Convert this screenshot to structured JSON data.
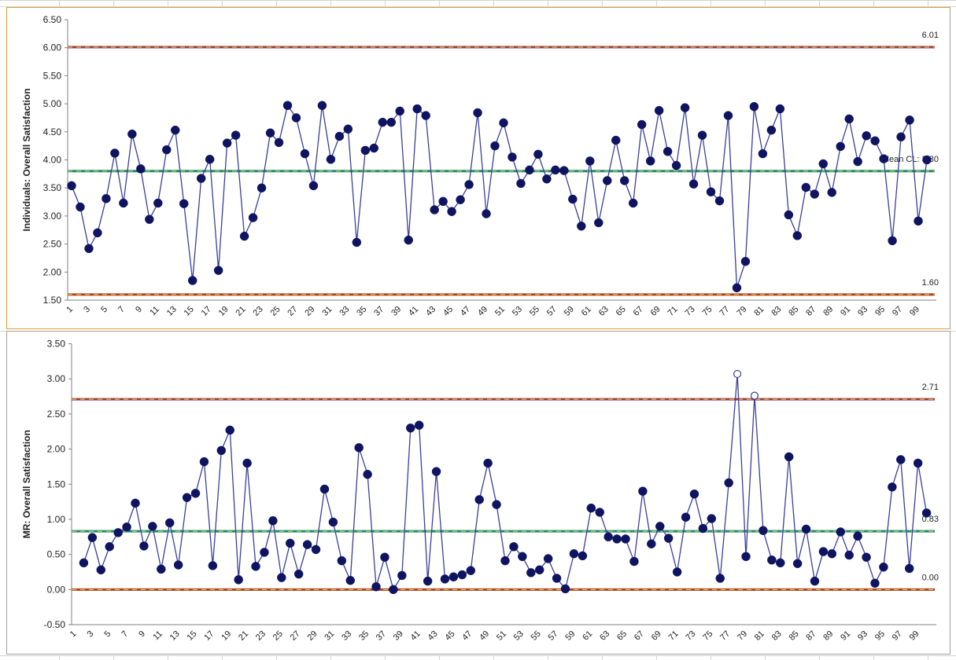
{
  "chart_data": [
    {
      "type": "line",
      "title": "",
      "xlabel": "",
      "ylabel": "Individuals: Overall Satisfaction",
      "ylim": [
        1.5,
        6.5
      ],
      "yticks": [
        "1.50",
        "2.00",
        "2.50",
        "3.00",
        "3.50",
        "4.00",
        "4.50",
        "5.00",
        "5.50",
        "6.00",
        "6.50"
      ],
      "xticks": [
        "1",
        "3",
        "5",
        "7",
        "9",
        "11",
        "13",
        "15",
        "17",
        "19",
        "21",
        "23",
        "25",
        "27",
        "29",
        "31",
        "33",
        "35",
        "37",
        "39",
        "41",
        "43",
        "45",
        "47",
        "49",
        "51",
        "53",
        "55",
        "57",
        "59",
        "61",
        "63",
        "65",
        "67",
        "69",
        "71",
        "73",
        "75",
        "77",
        "79",
        "81",
        "83",
        "85",
        "87",
        "89",
        "91",
        "93",
        "95",
        "97",
        "99"
      ],
      "grid": false,
      "x": [
        1,
        2,
        3,
        4,
        5,
        6,
        7,
        8,
        9,
        10,
        11,
        12,
        13,
        14,
        15,
        16,
        17,
        18,
        19,
        20,
        21,
        22,
        23,
        24,
        25,
        26,
        27,
        28,
        29,
        30,
        31,
        32,
        33,
        34,
        35,
        36,
        37,
        38,
        39,
        40,
        41,
        42,
        43,
        44,
        45,
        46,
        47,
        48,
        49,
        50,
        51,
        52,
        53,
        54,
        55,
        56,
        57,
        58,
        59,
        60,
        61,
        62,
        63,
        64,
        65,
        66,
        67,
        68,
        69,
        70,
        71,
        72,
        73,
        74,
        75,
        76,
        77,
        78,
        79,
        80,
        81,
        82,
        83,
        84,
        85,
        86,
        87,
        88,
        89,
        90,
        91,
        92,
        93,
        94,
        95,
        96,
        97,
        98,
        99,
        100
      ],
      "series": [
        {
          "name": "Overall Satisfaction",
          "color": "#0f1461",
          "values": [
            3.54,
            3.16,
            2.42,
            2.7,
            3.31,
            4.12,
            3.23,
            4.46,
            3.84,
            2.94,
            3.23,
            4.18,
            4.53,
            3.22,
            1.85,
            3.67,
            4.01,
            2.03,
            4.3,
            4.44,
            2.64,
            2.97,
            3.5,
            4.48,
            4.31,
            4.97,
            4.75,
            4.11,
            3.54,
            4.97,
            4.01,
            4.42,
            4.55,
            2.53,
            4.17,
            4.21,
            4.67,
            4.67,
            4.87,
            2.57,
            4.91,
            4.79,
            3.11,
            3.26,
            3.08,
            3.29,
            3.56,
            4.84,
            3.04,
            4.25,
            4.66,
            4.05,
            3.58,
            3.82,
            4.1,
            3.66,
            3.82,
            3.81,
            3.3,
            2.82,
            3.98,
            2.88,
            3.63,
            4.35,
            3.63,
            3.23,
            4.63,
            3.98,
            4.88,
            4.15,
            3.9,
            4.93,
            3.57,
            4.44,
            3.43,
            3.27,
            4.79,
            1.72,
            2.19,
            4.95,
            4.11,
            4.53,
            4.91,
            3.02,
            2.65,
            3.51,
            3.39,
            3.93,
            3.42,
            4.24,
            4.73,
            3.97,
            4.43,
            4.34,
            4.02,
            2.56,
            4.41,
            4.71,
            2.91,
            4.0
          ]
        }
      ],
      "control_lines": [
        {
          "name": "UCL",
          "value": 6.01,
          "label": "6.01",
          "color": "#9b3b3b"
        },
        {
          "name": "Mean CL",
          "value": 3.8,
          "label": "Mean CL: 3.80",
          "color": "#1f8a6a"
        },
        {
          "name": "LCL",
          "value": 1.6,
          "label": "1.60",
          "color": "#b0401a"
        }
      ]
    },
    {
      "type": "line",
      "title": "",
      "xlabel": "",
      "ylabel": "MR: Overall Satisfaction",
      "ylim": [
        -0.5,
        3.5
      ],
      "yticks": [
        "-0.50",
        "0.00",
        "0.50",
        "1.00",
        "1.50",
        "2.00",
        "2.50",
        "3.00",
        "3.50"
      ],
      "xticks": [
        "1",
        "3",
        "5",
        "7",
        "9",
        "11",
        "13",
        "15",
        "17",
        "19",
        "21",
        "23",
        "25",
        "27",
        "29",
        "31",
        "33",
        "35",
        "37",
        "39",
        "41",
        "43",
        "45",
        "47",
        "49",
        "51",
        "53",
        "55",
        "57",
        "59",
        "61",
        "63",
        "65",
        "67",
        "69",
        "71",
        "73",
        "75",
        "77",
        "79",
        "81",
        "83",
        "85",
        "87",
        "89",
        "91",
        "93",
        "95",
        "97",
        "99"
      ],
      "grid": false,
      "x": [
        2,
        3,
        4,
        5,
        6,
        7,
        8,
        9,
        10,
        11,
        12,
        13,
        14,
        15,
        16,
        17,
        18,
        19,
        20,
        21,
        22,
        23,
        24,
        25,
        26,
        27,
        28,
        29,
        30,
        31,
        32,
        33,
        34,
        35,
        36,
        37,
        38,
        39,
        40,
        41,
        42,
        43,
        44,
        45,
        46,
        47,
        48,
        49,
        50,
        51,
        52,
        53,
        54,
        55,
        56,
        57,
        58,
        59,
        60,
        61,
        62,
        63,
        64,
        65,
        66,
        67,
        68,
        69,
        70,
        71,
        72,
        73,
        74,
        75,
        76,
        77,
        78,
        79,
        80,
        81,
        82,
        83,
        84,
        85,
        86,
        87,
        88,
        89,
        90,
        91,
        92,
        93,
        94,
        95,
        96,
        97,
        98,
        99,
        100
      ],
      "series": [
        {
          "name": "Moving Range",
          "color": "#0f1461",
          "values": [
            0.38,
            0.74,
            0.28,
            0.61,
            0.81,
            0.89,
            1.23,
            0.62,
            0.9,
            0.29,
            0.95,
            0.35,
            1.31,
            1.37,
            1.82,
            0.34,
            1.98,
            2.27,
            0.14,
            1.8,
            0.33,
            0.53,
            0.98,
            0.17,
            0.66,
            0.22,
            0.64,
            0.57,
            1.43,
            0.96,
            0.41,
            0.13,
            2.02,
            1.64,
            0.04,
            0.46,
            0.0,
            0.2,
            2.3,
            2.34,
            0.12,
            1.68,
            0.15,
            0.18,
            0.21,
            0.27,
            1.28,
            1.8,
            1.21,
            0.41,
            0.61,
            0.47,
            0.24,
            0.28,
            0.44,
            0.16,
            0.01,
            0.51,
            0.48,
            1.16,
            1.1,
            0.75,
            0.72,
            0.72,
            0.4,
            1.4,
            0.65,
            0.9,
            0.73,
            0.25,
            1.03,
            1.36,
            0.87,
            1.01,
            0.16,
            1.52,
            3.07,
            0.47,
            2.76,
            0.84,
            0.42,
            0.38,
            1.89,
            0.37,
            0.86,
            0.12,
            0.54,
            0.51,
            0.82,
            0.49,
            0.76,
            0.46,
            0.09,
            0.32,
            1.46,
            1.85,
            0.3,
            1.8,
            1.09
          ],
          "out_of_control_points": [
            78,
            80
          ]
        }
      ],
      "control_lines": [
        {
          "name": "UCL",
          "value": 2.71,
          "label": "2.71",
          "color": "#9b3b3b"
        },
        {
          "name": "Mean CL",
          "value": 0.83,
          "label": "0.83",
          "color": "#1f8a6a"
        },
        {
          "name": "LCL",
          "value": 0.0,
          "label": "0.00",
          "color": "#b0401a"
        }
      ]
    }
  ],
  "colors": {
    "series": "#0f1461",
    "ucl": "#9b3b3b",
    "center": "#1f8a6a",
    "lcl": "#b0401a",
    "axis": "#808080",
    "text": "#222222",
    "selection_border": "#e0a030"
  }
}
